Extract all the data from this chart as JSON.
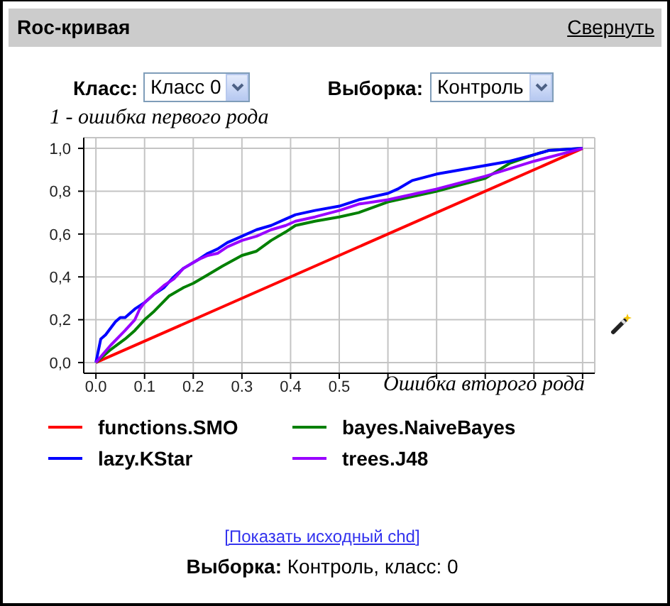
{
  "chart_data": {
    "type": "line",
    "title": "Roc-кривая",
    "xlabel": "Ошибка второго рода",
    "ylabel": "1 - ошибка первого рода",
    "annotations": [
      "Свернуть",
      "Класс:",
      "Класс 0",
      "Выборка:",
      "Контроль",
      "[Показать исходный chd]",
      "Выборка: Контроль, класс: 0"
    ],
    "xlim": [
      -0.025,
      1.025
    ],
    "ylim": [
      -0.05,
      1.05
    ],
    "xticks": [
      {
        "value": 0,
        "label": "0.0"
      },
      {
        "value": 0.1,
        "label": "0.1"
      },
      {
        "value": 0.2,
        "label": "0.2"
      },
      {
        "value": 0.3,
        "label": "0.3"
      },
      {
        "value": 0.4,
        "label": "0.4"
      },
      {
        "value": 0.5,
        "label": "0.5"
      },
      {
        "value": 0.6,
        "label": null
      },
      {
        "value": 0.7,
        "label": null
      },
      {
        "value": 0.8,
        "label": null
      },
      {
        "value": 0.9,
        "label": null
      },
      {
        "value": 1,
        "label": null
      }
    ],
    "yticks": [
      {
        "value": 0,
        "label": "0,0"
      },
      {
        "value": 0.2,
        "label": "0,2"
      },
      {
        "value": 0.4,
        "label": "0,4"
      },
      {
        "value": 0.6,
        "label": "0,6"
      },
      {
        "value": 0.8,
        "label": "0,8"
      },
      {
        "value": 1,
        "label": "1,0"
      }
    ],
    "grid": true,
    "legend": "bottom",
    "marker": "none",
    "line_style": "solid",
    "series": [
      {
        "name": "functions.SMO",
        "color": "#ff0000",
        "x": [
          0,
          1
        ],
        "values": [
          0,
          1
        ]
      },
      {
        "name": "bayes.NaiveBayes",
        "color": "#008000",
        "x": [
          0,
          0.03,
          0.06,
          0.08,
          0.1,
          0.12,
          0.15,
          0.18,
          0.2,
          0.23,
          0.26,
          0.3,
          0.33,
          0.36,
          0.39,
          0.41,
          0.45,
          0.5,
          0.54,
          0.6,
          0.7,
          0.75,
          0.8,
          0.85,
          0.9,
          0.93,
          1
        ],
        "values": [
          0,
          0.06,
          0.11,
          0.15,
          0.2,
          0.24,
          0.31,
          0.35,
          0.37,
          0.41,
          0.45,
          0.5,
          0.52,
          0.57,
          0.61,
          0.64,
          0.66,
          0.68,
          0.7,
          0.75,
          0.8,
          0.83,
          0.86,
          0.93,
          0.97,
          0.99,
          1
        ]
      },
      {
        "name": "lazy.KStar",
        "color": "#0000ff",
        "x": [
          0,
          0.01,
          0.02,
          0.04,
          0.05,
          0.06,
          0.08,
          0.1,
          0.12,
          0.14,
          0.16,
          0.18,
          0.21,
          0.23,
          0.25,
          0.27,
          0.3,
          0.33,
          0.36,
          0.39,
          0.41,
          0.45,
          0.5,
          0.54,
          0.6,
          0.62,
          0.65,
          0.7,
          0.75,
          0.8,
          0.85,
          0.9,
          0.93,
          1
        ],
        "values": [
          0,
          0.11,
          0.13,
          0.19,
          0.21,
          0.21,
          0.25,
          0.28,
          0.32,
          0.35,
          0.4,
          0.44,
          0.48,
          0.51,
          0.53,
          0.56,
          0.59,
          0.62,
          0.64,
          0.67,
          0.69,
          0.71,
          0.73,
          0.76,
          0.79,
          0.81,
          0.85,
          0.88,
          0.9,
          0.92,
          0.94,
          0.97,
          0.99,
          1
        ]
      },
      {
        "name": "trees.J48",
        "color": "#9900ff",
        "x": [
          0,
          0.03,
          0.06,
          0.08,
          0.09,
          0.1,
          0.12,
          0.14,
          0.16,
          0.18,
          0.21,
          0.23,
          0.25,
          0.27,
          0.3,
          0.33,
          0.36,
          0.39,
          0.41,
          0.45,
          0.5,
          0.54,
          0.6,
          0.7,
          0.8,
          0.9,
          1
        ],
        "values": [
          0,
          0.08,
          0.15,
          0.2,
          0.25,
          0.28,
          0.32,
          0.36,
          0.39,
          0.44,
          0.48,
          0.5,
          0.51,
          0.54,
          0.57,
          0.59,
          0.62,
          0.64,
          0.66,
          0.68,
          0.71,
          0.74,
          0.76,
          0.81,
          0.87,
          0.94,
          1
        ]
      }
    ]
  }
}
